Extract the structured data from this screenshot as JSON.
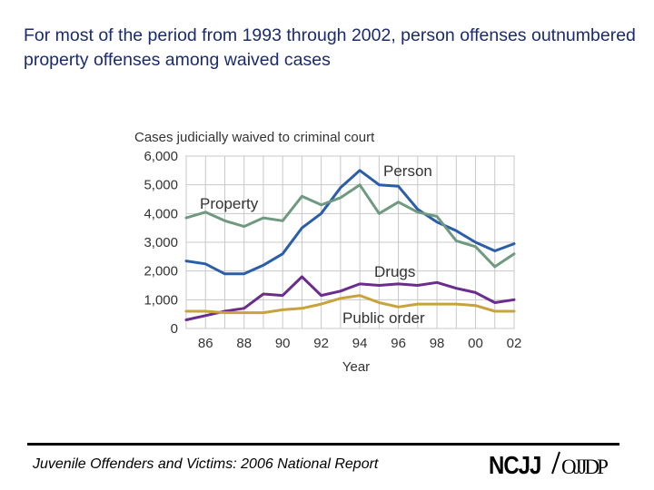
{
  "title": "For most of the period from 1993 through 2002, person offenses outnumbered property offenses among waived cases",
  "footer": {
    "report": "Juvenile Offenders and Victims: 2006 National Report",
    "logo_ncjj": "NCJJ",
    "logo_ojjdp": "OJJDP"
  },
  "chart_data": {
    "type": "line",
    "title": "Cases judicially waived to criminal court",
    "xlabel": "Year",
    "ylabel": "",
    "x": [
      1985,
      1986,
      1987,
      1988,
      1989,
      1990,
      1991,
      1992,
      1993,
      1994,
      1995,
      1996,
      1997,
      1998,
      1999,
      2000,
      2001,
      2002
    ],
    "xticks": [
      1986,
      1988,
      1990,
      1992,
      1994,
      1996,
      1998,
      2000,
      2002
    ],
    "xtick_labels": [
      "86",
      "88",
      "90",
      "92",
      "94",
      "96",
      "98",
      "00",
      "02"
    ],
    "ylim": [
      0,
      6000
    ],
    "yticks": [
      0,
      1000,
      2000,
      3000,
      4000,
      5000,
      6000
    ],
    "ytick_labels": [
      "0",
      "1,000",
      "2,000",
      "3,000",
      "4,000",
      "5,000",
      "6,000"
    ],
    "grid": true,
    "series": [
      {
        "name": "Person",
        "color": "#2b5ea8",
        "values": [
          2350,
          2250,
          1900,
          1900,
          2200,
          2600,
          3500,
          4000,
          4900,
          5500,
          5000,
          4950,
          4150,
          3700,
          3400,
          3000,
          2700,
          2950
        ]
      },
      {
        "name": "Property",
        "color": "#6f9a80",
        "values": [
          3850,
          4050,
          3750,
          3550,
          3850,
          3750,
          4600,
          4300,
          4550,
          5000,
          4000,
          4400,
          4050,
          3900,
          3050,
          2850,
          2150,
          2600
        ]
      },
      {
        "name": "Drugs",
        "color": "#6a2d8c",
        "values": [
          300,
          450,
          600,
          700,
          1200,
          1150,
          1800,
          1150,
          1300,
          1550,
          1500,
          1550,
          1500,
          1600,
          1400,
          1250,
          900,
          1000
        ]
      },
      {
        "name": "Public order",
        "color": "#c9a23c",
        "values": [
          600,
          600,
          550,
          550,
          550,
          650,
          700,
          850,
          1050,
          1150,
          900,
          750,
          850,
          850,
          850,
          800,
          600,
          600
        ]
      }
    ],
    "series_labels": {
      "Person": "Person",
      "Property": "Property",
      "Drugs": "Drugs",
      "Public order": "Public order"
    }
  }
}
